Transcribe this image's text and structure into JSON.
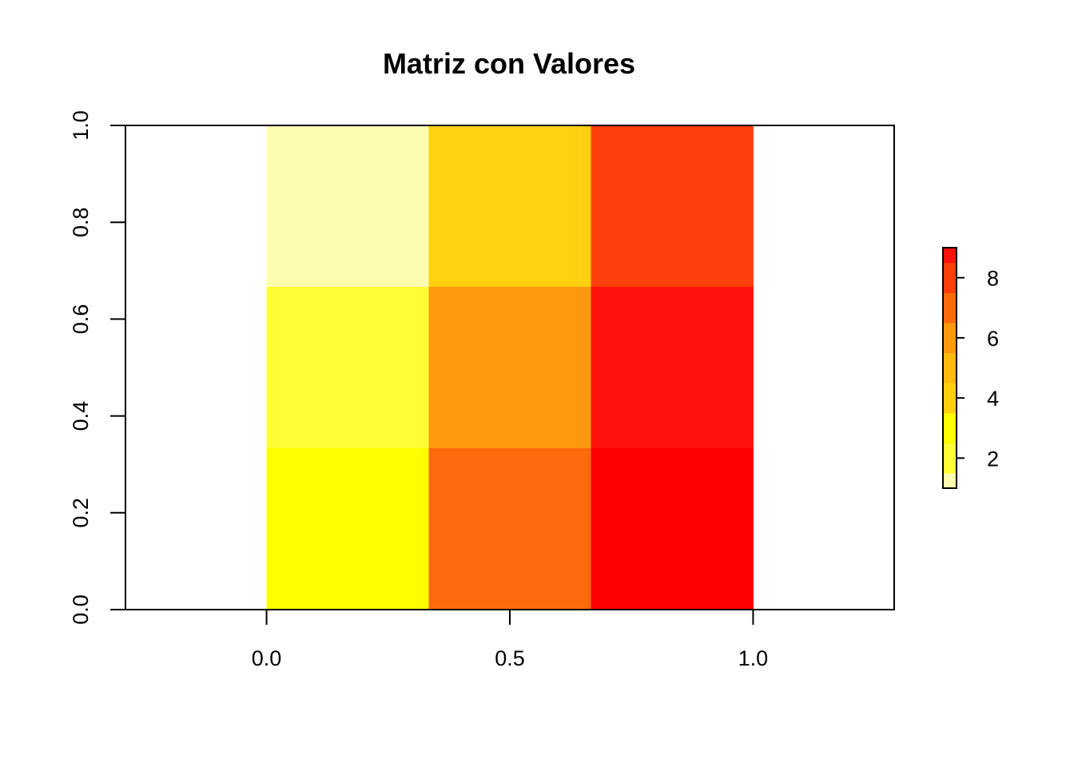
{
  "chart_data": {
    "type": "heatmap",
    "title": "Matriz con Valores",
    "xlabel": "",
    "ylabel": "",
    "matrix": [
      [
        1,
        4,
        7
      ],
      [
        2,
        5,
        8
      ],
      [
        3,
        6,
        9
      ]
    ],
    "matrix_note_rows": "rows listed top to bottom; columns left to right",
    "x_ticks": [
      {
        "value": 0.0,
        "label": "0.0"
      },
      {
        "value": 0.5,
        "label": "0.5"
      },
      {
        "value": 1.0,
        "label": "1.0"
      }
    ],
    "y_ticks": [
      {
        "value": 0.0,
        "label": "0.0"
      },
      {
        "value": 0.2,
        "label": "0.2"
      },
      {
        "value": 0.4,
        "label": "0.4"
      },
      {
        "value": 0.6,
        "label": "0.6"
      },
      {
        "value": 0.8,
        "label": "0.8"
      },
      {
        "value": 1.0,
        "label": "1.0"
      }
    ],
    "xlim": [
      -0.29,
      1.29
    ],
    "ylim": [
      0,
      1
    ],
    "colorbar": {
      "range": [
        1,
        9
      ],
      "ticks": [
        {
          "value": 2,
          "label": "2"
        },
        {
          "value": 4,
          "label": "4"
        },
        {
          "value": 6,
          "label": "6"
        },
        {
          "value": 8,
          "label": "8"
        }
      ],
      "bins": [
        1,
        1.5,
        2.5,
        3.5,
        4.5,
        5.5,
        6.5,
        7.5,
        8.5,
        9
      ],
      "colors": [
        "#FFFFBF",
        "#FFFF55",
        "#FFFF00",
        "#FFD000",
        "#FFAA00",
        "#FF8800",
        "#FF6600",
        "#FF3300",
        "#FF0000"
      ]
    },
    "cell_colors": {
      "1": "#FDFDB0",
      "2": "#FEFE34",
      "3": "#FFFF00",
      "4": "#FFD00D",
      "5": "#FB9A0C",
      "6": "#FC6B0B",
      "7": "#FD3F0C",
      "8": "#FE130C",
      "9": "#FF0000"
    },
    "colorbar_colors": [
      "#FDFDB0",
      "#FEFE34",
      "#FFFF00",
      "#FFD00D",
      "#FFBB0C",
      "#FB9A0C",
      "#FC6B0B",
      "#FD3F0C",
      "#FE130C"
    ],
    "legend_position": "right",
    "grid": false
  }
}
